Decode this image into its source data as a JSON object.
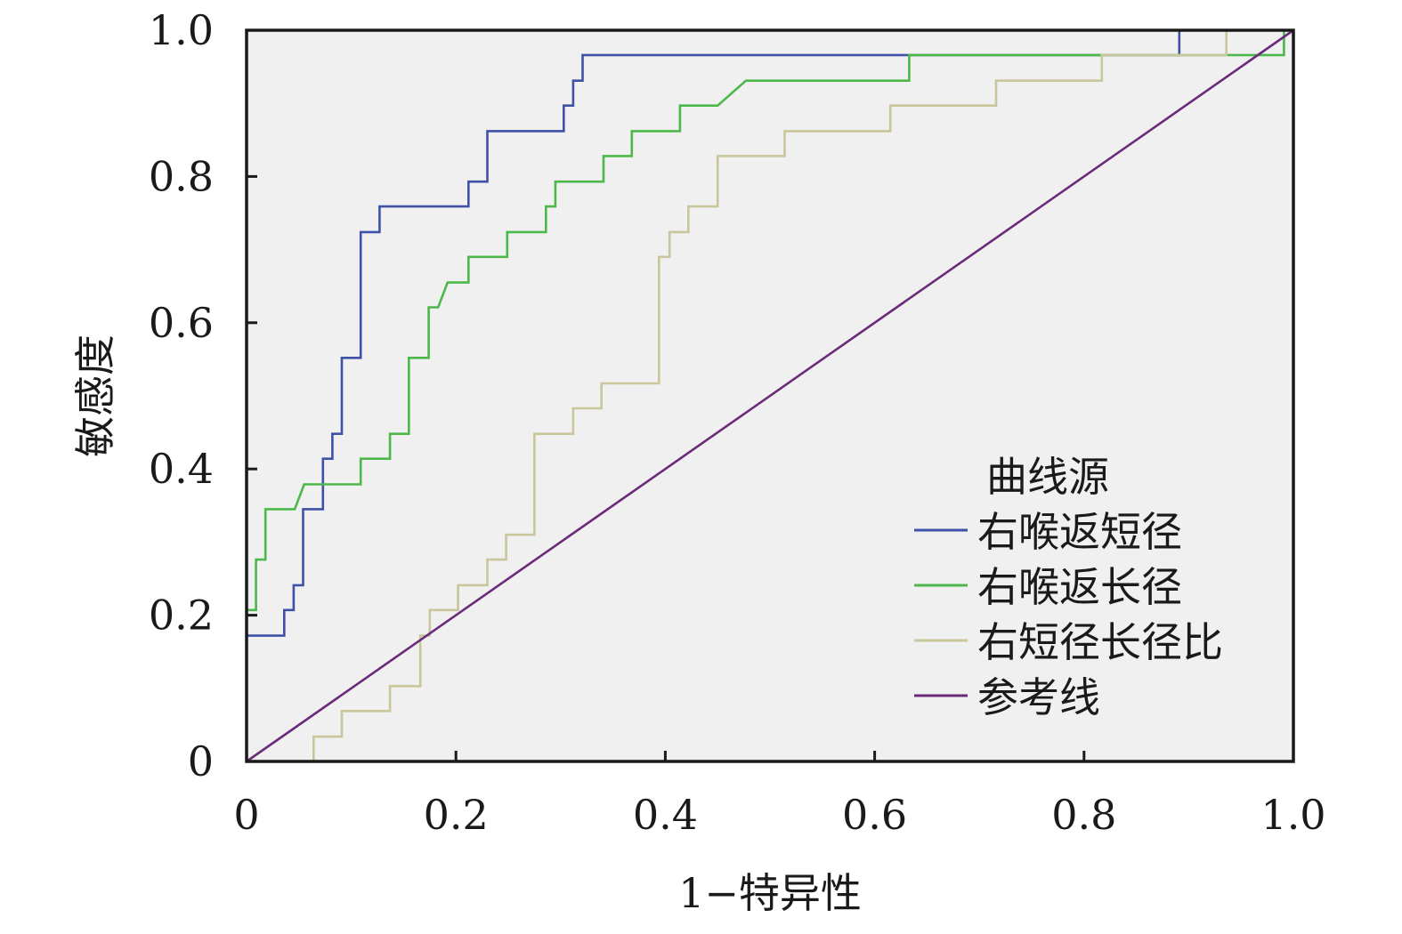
{
  "chart_data": {
    "type": "line",
    "title": "",
    "xlabel": "1−特异性",
    "ylabel": "敏感度",
    "xlim": [
      0,
      1
    ],
    "ylim": [
      0,
      1
    ],
    "x_ticks": [
      "0",
      "0.2",
      "0.4",
      "0.6",
      "0.8",
      "1.0"
    ],
    "y_ticks": [
      "0",
      "0.2",
      "0.4",
      "0.6",
      "0.8",
      "1.0"
    ],
    "grid": false,
    "legend": {
      "title": "曲线源",
      "placement": "bottom-right"
    },
    "series": [
      {
        "name": "右喉返短径",
        "color": "#3f51a8",
        "step": true,
        "points": [
          [
            0,
            0
          ],
          [
            0,
            0.172
          ],
          [
            0.036,
            0.172
          ],
          [
            0.036,
            0.207
          ],
          [
            0.045,
            0.207
          ],
          [
            0.045,
            0.241
          ],
          [
            0.054,
            0.241
          ],
          [
            0.054,
            0.345
          ],
          [
            0.073,
            0.345
          ],
          [
            0.073,
            0.414
          ],
          [
            0.082,
            0.414
          ],
          [
            0.082,
            0.448
          ],
          [
            0.091,
            0.448
          ],
          [
            0.091,
            0.552
          ],
          [
            0.109,
            0.552
          ],
          [
            0.109,
            0.724
          ],
          [
            0.127,
            0.724
          ],
          [
            0.127,
            0.759
          ],
          [
            0.212,
            0.759
          ],
          [
            0.212,
            0.793
          ],
          [
            0.23,
            0.793
          ],
          [
            0.23,
            0.862
          ],
          [
            0.303,
            0.862
          ],
          [
            0.303,
            0.897
          ],
          [
            0.312,
            0.897
          ],
          [
            0.312,
            0.931
          ],
          [
            0.321,
            0.931
          ],
          [
            0.321,
            0.966
          ],
          [
            0.891,
            0.966
          ],
          [
            0.891,
            1.0
          ],
          [
            1.0,
            1.0
          ]
        ]
      },
      {
        "name": "右喉返长径",
        "color": "#4db84a",
        "step": true,
        "points": [
          [
            0,
            0
          ],
          [
            0,
            0.207
          ],
          [
            0.009,
            0.207
          ],
          [
            0.009,
            0.276
          ],
          [
            0.018,
            0.276
          ],
          [
            0.018,
            0.345
          ],
          [
            0.046,
            0.345
          ],
          [
            0.055,
            0.379
          ],
          [
            0.109,
            0.379
          ],
          [
            0.109,
            0.414
          ],
          [
            0.137,
            0.414
          ],
          [
            0.137,
            0.448
          ],
          [
            0.155,
            0.448
          ],
          [
            0.155,
            0.552
          ],
          [
            0.174,
            0.552
          ],
          [
            0.174,
            0.621
          ],
          [
            0.183,
            0.621
          ],
          [
            0.192,
            0.655
          ],
          [
            0.212,
            0.655
          ],
          [
            0.212,
            0.69
          ],
          [
            0.249,
            0.69
          ],
          [
            0.249,
            0.724
          ],
          [
            0.286,
            0.724
          ],
          [
            0.286,
            0.759
          ],
          [
            0.295,
            0.759
          ],
          [
            0.295,
            0.793
          ],
          [
            0.341,
            0.793
          ],
          [
            0.341,
            0.828
          ],
          [
            0.368,
            0.828
          ],
          [
            0.368,
            0.862
          ],
          [
            0.414,
            0.862
          ],
          [
            0.414,
            0.897
          ],
          [
            0.45,
            0.897
          ],
          [
            0.477,
            0.931
          ],
          [
            0.633,
            0.931
          ],
          [
            0.633,
            0.966
          ],
          [
            0.991,
            0.966
          ],
          [
            0.991,
            1.0
          ],
          [
            1.0,
            1.0
          ]
        ]
      },
      {
        "name": "右短径长径比",
        "color": "#c8c69a",
        "step": true,
        "points": [
          [
            0,
            0
          ],
          [
            0.064,
            0
          ],
          [
            0.064,
            0.034
          ],
          [
            0.091,
            0.034
          ],
          [
            0.091,
            0.069
          ],
          [
            0.137,
            0.069
          ],
          [
            0.137,
            0.103
          ],
          [
            0.166,
            0.103
          ],
          [
            0.166,
            0.172
          ],
          [
            0.175,
            0.172
          ],
          [
            0.175,
            0.207
          ],
          [
            0.202,
            0.207
          ],
          [
            0.202,
            0.241
          ],
          [
            0.23,
            0.241
          ],
          [
            0.23,
            0.276
          ],
          [
            0.248,
            0.276
          ],
          [
            0.248,
            0.31
          ],
          [
            0.275,
            0.31
          ],
          [
            0.275,
            0.448
          ],
          [
            0.312,
            0.448
          ],
          [
            0.312,
            0.483
          ],
          [
            0.339,
            0.483
          ],
          [
            0.339,
            0.517
          ],
          [
            0.394,
            0.517
          ],
          [
            0.394,
            0.69
          ],
          [
            0.404,
            0.69
          ],
          [
            0.404,
            0.724
          ],
          [
            0.422,
            0.724
          ],
          [
            0.422,
            0.759
          ],
          [
            0.45,
            0.759
          ],
          [
            0.45,
            0.828
          ],
          [
            0.514,
            0.828
          ],
          [
            0.514,
            0.862
          ],
          [
            0.615,
            0.862
          ],
          [
            0.615,
            0.897
          ],
          [
            0.716,
            0.897
          ],
          [
            0.716,
            0.931
          ],
          [
            0.817,
            0.931
          ],
          [
            0.817,
            0.966
          ],
          [
            0.936,
            0.966
          ],
          [
            0.936,
            1.0
          ],
          [
            1.0,
            1.0
          ]
        ]
      },
      {
        "name": "参考线",
        "color": "#6b2a7a",
        "step": false,
        "points": [
          [
            0,
            0
          ],
          [
            1,
            1
          ]
        ]
      }
    ]
  }
}
